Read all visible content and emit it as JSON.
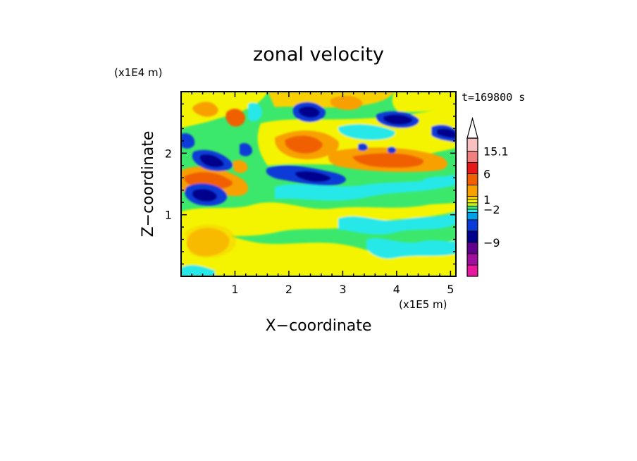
{
  "chart_data": {
    "type": "heatmap",
    "title": "zonal velocity",
    "xlabel": "X−coordinate",
    "ylabel": "Z−coordinate",
    "x_scale_note": "(x1E5 m)",
    "y_scale_note": "(x1E4 m)",
    "time_label": "t=169800 s",
    "xlim": [
      0,
      5.1
    ],
    "ylim": [
      0,
      3.0
    ],
    "x_ticks": [
      "1",
      "2",
      "3",
      "4",
      "5"
    ],
    "y_ticks": [
      "1",
      "2"
    ],
    "colorbar": {
      "labels": [
        "15.1",
        "6",
        "1",
        "−2",
        "−9"
      ],
      "level_colors": [
        "#e8189e",
        "#a0109e",
        "#62008e",
        "#00008e",
        "#0a3ad8",
        "#00a0e8",
        "#28e8e8",
        "#3ce86c",
        "#c8f020",
        "#f4f400",
        "#f8d000",
        "#f8a000",
        "#f06000",
        "#e81818",
        "#f08080",
        "#f8c0c0"
      ],
      "top_arrow": true
    },
    "features": [
      {
        "kind": "negative-core",
        "x": 0.5,
        "z": 1.35,
        "value": -9
      },
      {
        "kind": "negative-core",
        "x": 0.6,
        "z": 1.85,
        "value": -9
      },
      {
        "kind": "negative-core",
        "x": 2.35,
        "z": 2.6,
        "value": -9
      },
      {
        "kind": "negative-core",
        "x": 4.0,
        "z": 2.55,
        "value": -9
      },
      {
        "kind": "negative-core",
        "x": 4.95,
        "z": 2.3,
        "value": -9
      },
      {
        "kind": "negative-core",
        "x": 2.4,
        "z": 1.6,
        "value": -9
      },
      {
        "kind": "positive-core",
        "x": 0.6,
        "z": 1.6,
        "value": 6
      },
      {
        "kind": "positive-core",
        "x": 2.15,
        "z": 2.2,
        "value": 6
      },
      {
        "kind": "positive-core",
        "x": 3.9,
        "z": 1.9,
        "value": 6
      },
      {
        "kind": "positive-core",
        "x": 1.2,
        "z": 2.55,
        "value": 6
      }
    ]
  }
}
